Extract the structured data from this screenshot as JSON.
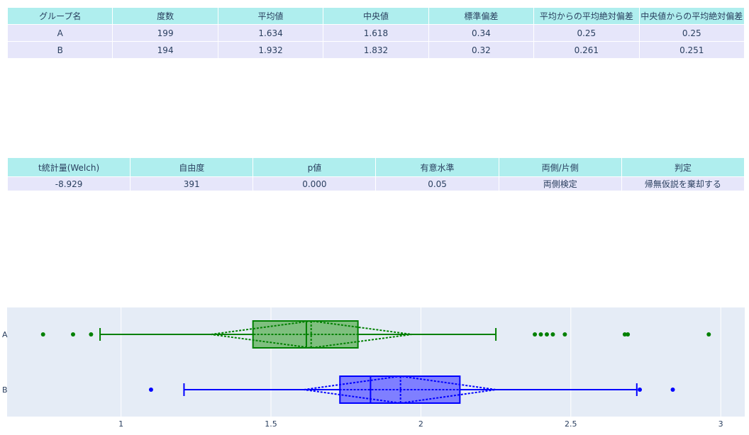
{
  "stats_table": {
    "headers": [
      "グループ名",
      "度数",
      "平均値",
      "中央値",
      "標準偏差",
      "平均からの平均絶対偏差",
      "中央値からの平均絶対偏差"
    ],
    "rows": [
      [
        "A",
        "199",
        "1.634",
        "1.618",
        "0.34",
        "0.25",
        "0.25"
      ],
      [
        "B",
        "194",
        "1.932",
        "1.832",
        "0.32",
        "0.261",
        "0.251"
      ]
    ]
  },
  "test_table": {
    "headers": [
      "t統計量(Welch)",
      "自由度",
      "p値",
      "有意水準",
      "両側/片側",
      "判定"
    ],
    "rows": [
      [
        "-8.929",
        "391",
        "0.000",
        "0.05",
        "両側検定",
        "帰無仮説を棄却する"
      ]
    ]
  },
  "chart_data": {
    "type": "box",
    "orientation": "horizontal",
    "xlim": [
      0.62,
      3.08
    ],
    "xticks": [
      1,
      1.5,
      2,
      2.5,
      3
    ],
    "xtick_labels": [
      "1",
      "1.5",
      "2",
      "2.5",
      "3"
    ],
    "grid": true,
    "categories": [
      "A",
      "B"
    ],
    "series": [
      {
        "category": "A",
        "color": "#008000",
        "fill": "#7fbf7f",
        "q1": 1.44,
        "median": 1.618,
        "q3": 1.79,
        "whisker_low": 0.93,
        "whisker_high": 2.25,
        "mean": 1.634,
        "sd": 0.34,
        "notch_low": 1.3,
        "notch_high": 1.97,
        "outliers": [
          0.74,
          0.84,
          0.9,
          2.38,
          2.4,
          2.42,
          2.44,
          2.48,
          2.68,
          2.69,
          2.96
        ]
      },
      {
        "category": "B",
        "color": "#0000ff",
        "fill": "#7f7fff",
        "q1": 1.73,
        "median": 1.832,
        "q3": 2.13,
        "whisker_low": 1.21,
        "whisker_high": 2.72,
        "mean": 1.932,
        "sd": 0.32,
        "notch_low": 1.61,
        "notch_high": 2.25,
        "outliers": [
          1.1,
          2.73,
          2.84
        ]
      }
    ]
  }
}
